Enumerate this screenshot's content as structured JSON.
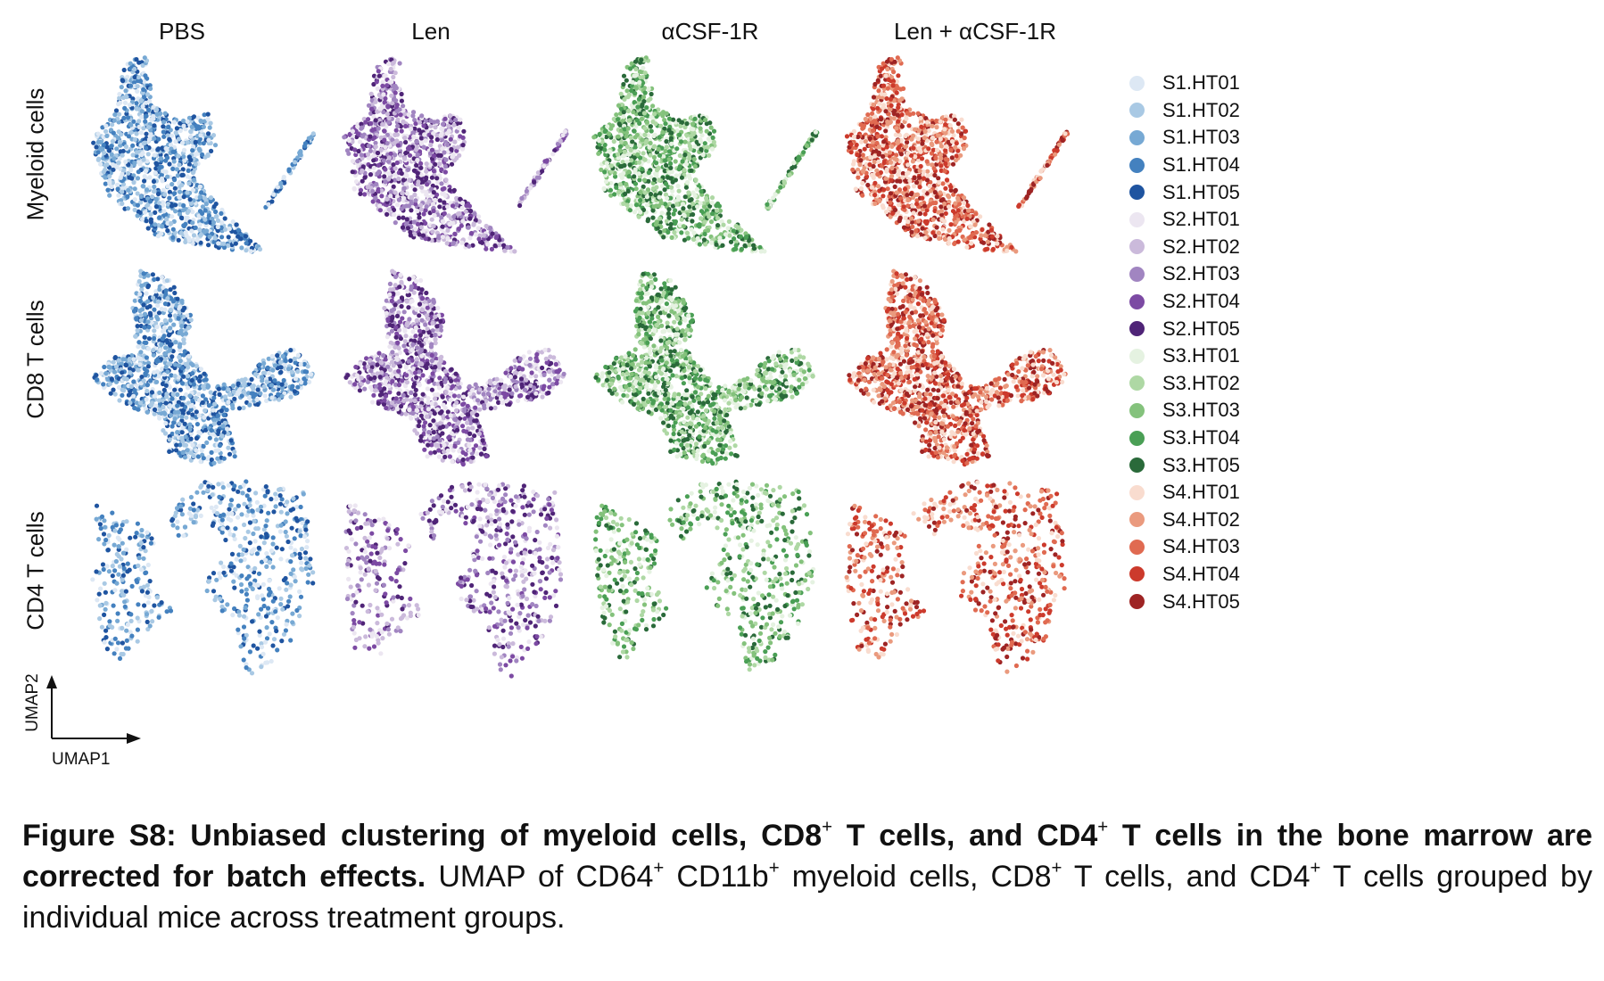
{
  "chart_data": {
    "type": "scatter",
    "columns": [
      "PBS",
      "Len",
      "αCSF-1R",
      "Len + αCSF-1R"
    ],
    "rows": [
      "Myeloid cells",
      "CD8 T cells",
      "CD4 T cells"
    ],
    "xlabel": "UMAP1",
    "ylabel": "UMAP2",
    "legend_placement": "right",
    "legend": [
      {
        "label": "S1.HT01",
        "color": "#dde8f4"
      },
      {
        "label": "S1.HT02",
        "color": "#a9c9e4"
      },
      {
        "label": "S1.HT03",
        "color": "#77a9d4"
      },
      {
        "label": "S1.HT04",
        "color": "#4481bf"
      },
      {
        "label": "S1.HT05",
        "color": "#1f54a0"
      },
      {
        "label": "S2.HT01",
        "color": "#ece6f1"
      },
      {
        "label": "S2.HT02",
        "color": "#cbbadb"
      },
      {
        "label": "S2.HT03",
        "color": "#a185c1"
      },
      {
        "label": "S2.HT04",
        "color": "#7c4aa3"
      },
      {
        "label": "S2.HT05",
        "color": "#4f2477"
      },
      {
        "label": "S3.HT01",
        "color": "#e5f2e1"
      },
      {
        "label": "S3.HT02",
        "color": "#aed8a4"
      },
      {
        "label": "S3.HT03",
        "color": "#84c27c"
      },
      {
        "label": "S3.HT04",
        "color": "#4a9f55"
      },
      {
        "label": "S3.HT05",
        "color": "#2a6a3a"
      },
      {
        "label": "S4.HT01",
        "color": "#f9dccf"
      },
      {
        "label": "S4.HT02",
        "color": "#ea9a7e"
      },
      {
        "label": "S4.HT03",
        "color": "#e06a51"
      },
      {
        "label": "S4.HT04",
        "color": "#cc3a2c"
      },
      {
        "label": "S4.HT05",
        "color": "#9e2424"
      }
    ]
  },
  "caption": {
    "bold_1": "Figure S8: Unbiased clustering of myeloid cells, CD8",
    "sup_1": "+",
    "bold_2": " T cells, and CD4",
    "sup_2": "+",
    "bold_3": " T cells in the bone marrow are corrected for batch effects.",
    "text_1": " UMAP of CD64",
    "sup_3": "+",
    "text_2": " CD11b",
    "sup_4": "+",
    "text_3": " myeloid cells, CD8",
    "sup_5": "+",
    "text_4": " T cells, and CD4",
    "sup_6": "+",
    "text_5": " T cells grouped by individual mice across treatment groups."
  }
}
